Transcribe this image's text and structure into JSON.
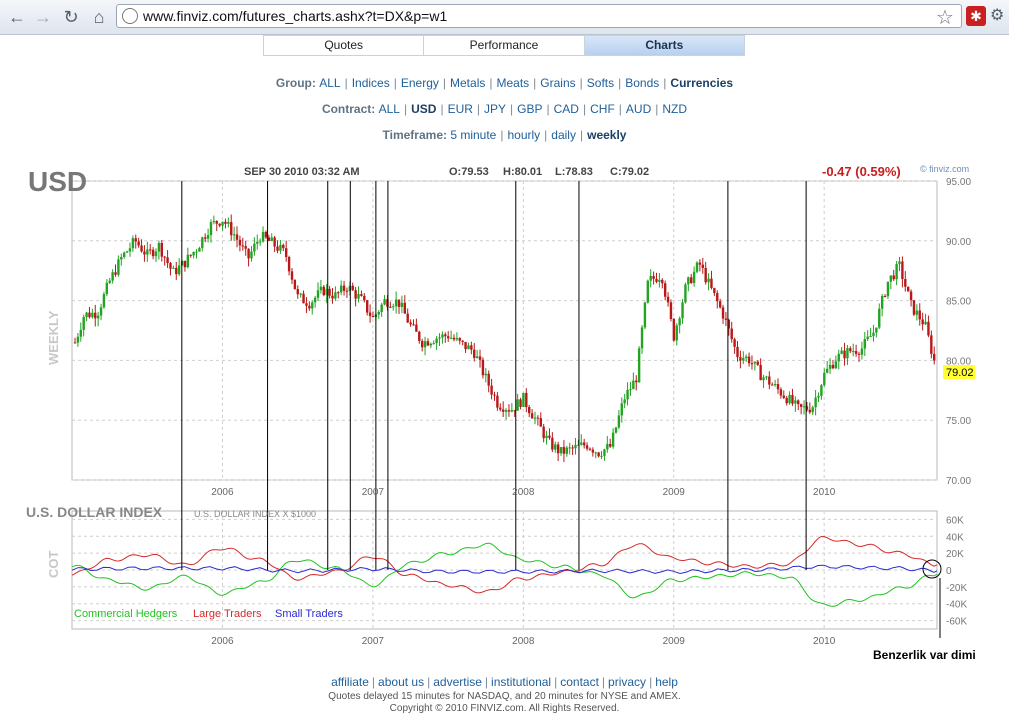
{
  "browser": {
    "url": "www.finviz.com/futures_charts.ashx?t=DX&p=w1"
  },
  "tabs": [
    {
      "label": "Quotes",
      "active": false
    },
    {
      "label": "Performance",
      "active": false
    },
    {
      "label": "Charts",
      "active": true
    }
  ],
  "filters": {
    "group": {
      "label": "Group:",
      "options": [
        "ALL",
        "Indices",
        "Energy",
        "Metals",
        "Meats",
        "Grains",
        "Softs",
        "Bonds",
        "Currencies"
      ],
      "selected": "Currencies"
    },
    "contract": {
      "label": "Contract:",
      "options": [
        "ALL",
        "USD",
        "EUR",
        "JPY",
        "GBP",
        "CAD",
        "CHF",
        "AUD",
        "NZD"
      ],
      "selected": "USD"
    },
    "timeframe": {
      "label": "Timeframe:",
      "options": [
        "5 minute",
        "hourly",
        "daily",
        "weekly"
      ],
      "selected": "weekly"
    }
  },
  "chart_data": [
    {
      "type": "candlestick",
      "symbol": "USD",
      "date_label": "SEP 30 2010 03:32 AM",
      "ohlc_label": {
        "open": "O:79.53",
        "high": "H:80.01",
        "low": "L:78.83",
        "close": "C:79.02"
      },
      "change": "-0.47 (0.59%)",
      "watermark": "© finviz.com",
      "period_label": "WEEKLY",
      "last_price": "79.02",
      "ylim": [
        70,
        95
      ],
      "yticks": [
        "95.00",
        "90.00",
        "85.00",
        "80.00",
        "75.00",
        "70.00"
      ],
      "xticks": [
        "2006",
        "2007",
        "2008",
        "2009",
        "2010"
      ],
      "x_range": [
        2005.0,
        2010.75
      ],
      "price_path": [
        [
          2005.02,
          81.5
        ],
        [
          2005.08,
          83.8
        ],
        [
          2005.17,
          84.0
        ],
        [
          2005.25,
          86.6
        ],
        [
          2005.33,
          88.6
        ],
        [
          2005.42,
          90.0
        ],
        [
          2005.5,
          88.8
        ],
        [
          2005.58,
          89.6
        ],
        [
          2005.67,
          87.3
        ],
        [
          2005.75,
          88.2
        ],
        [
          2005.83,
          89.4
        ],
        [
          2005.92,
          91.3
        ],
        [
          2006.0,
          91.8
        ],
        [
          2006.08,
          90.5
        ],
        [
          2006.17,
          88.5
        ],
        [
          2006.25,
          90.4
        ],
        [
          2006.33,
          89.8
        ],
        [
          2006.42,
          88.9
        ],
        [
          2006.5,
          85.3
        ],
        [
          2006.58,
          84.8
        ],
        [
          2006.67,
          85.9
        ],
        [
          2006.75,
          85.4
        ],
        [
          2006.83,
          86.2
        ],
        [
          2006.92,
          85.1
        ],
        [
          2007.0,
          83.5
        ],
        [
          2007.08,
          85.0
        ],
        [
          2007.17,
          84.9
        ],
        [
          2007.25,
          82.9
        ],
        [
          2007.33,
          81.5
        ],
        [
          2007.42,
          81.9
        ],
        [
          2007.5,
          82.1
        ],
        [
          2007.58,
          81.4
        ],
        [
          2007.67,
          80.8
        ],
        [
          2007.75,
          78.5
        ],
        [
          2007.83,
          76.4
        ],
        [
          2007.92,
          75.9
        ],
        [
          2008.0,
          76.8
        ],
        [
          2008.08,
          75.1
        ],
        [
          2008.17,
          73.1
        ],
        [
          2008.25,
          72.3
        ],
        [
          2008.33,
          72.6
        ],
        [
          2008.42,
          73.0
        ],
        [
          2008.5,
          72.3
        ],
        [
          2008.58,
          72.8
        ],
        [
          2008.67,
          76.8
        ],
        [
          2008.75,
          78.5
        ],
        [
          2008.83,
          86.6
        ],
        [
          2008.92,
          87.2
        ],
        [
          2009.0,
          82.0
        ],
        [
          2009.08,
          86.1
        ],
        [
          2009.17,
          88.1
        ],
        [
          2009.25,
          85.9
        ],
        [
          2009.33,
          83.8
        ],
        [
          2009.42,
          80.5
        ],
        [
          2009.5,
          80.1
        ],
        [
          2009.58,
          78.8
        ],
        [
          2009.67,
          77.8
        ],
        [
          2009.75,
          76.9
        ],
        [
          2009.83,
          75.9
        ],
        [
          2009.92,
          76.1
        ],
        [
          2010.0,
          78.8
        ],
        [
          2010.08,
          80.2
        ],
        [
          2010.17,
          80.8
        ],
        [
          2010.25,
          81.0
        ],
        [
          2010.33,
          82.4
        ],
        [
          2010.42,
          86.5
        ],
        [
          2010.5,
          87.9
        ],
        [
          2010.58,
          84.5
        ],
        [
          2010.67,
          83.0
        ],
        [
          2010.75,
          79.02
        ]
      ]
    },
    {
      "type": "line",
      "title": "U.S. DOLLAR INDEX",
      "subtitle": "U.S. DOLLAR INDEX X $1000",
      "panel_label": "COT",
      "ylim": [
        -70,
        70
      ],
      "yticks": [
        "60K",
        "40K",
        "20K",
        "0",
        "-20K",
        "-40K",
        "-60K"
      ],
      "xticks": [
        "2006",
        "2007",
        "2008",
        "2009",
        "2010"
      ],
      "series": [
        {
          "name": "Commercial Hedgers",
          "color": "#21c321",
          "points": [
            [
              2005.0,
              5
            ],
            [
              2005.25,
              -12
            ],
            [
              2005.5,
              -22
            ],
            [
              2005.75,
              -8
            ],
            [
              2006.0,
              -28
            ],
            [
              2006.25,
              -15
            ],
            [
              2006.5,
              12
            ],
            [
              2006.75,
              2
            ],
            [
              2007.0,
              -18
            ],
            [
              2007.25,
              8
            ],
            [
              2007.5,
              20
            ],
            [
              2007.75,
              30
            ],
            [
              2008.0,
              12
            ],
            [
              2008.25,
              4
            ],
            [
              2008.5,
              -5
            ],
            [
              2008.75,
              -32
            ],
            [
              2009.0,
              -12
            ],
            [
              2009.25,
              -8
            ],
            [
              2009.5,
              -4
            ],
            [
              2009.75,
              -8
            ],
            [
              2010.0,
              -42
            ],
            [
              2010.25,
              -35
            ],
            [
              2010.5,
              -22
            ],
            [
              2010.75,
              -5
            ]
          ]
        },
        {
          "name": "Large Traders",
          "color": "#d42a2a",
          "points": [
            [
              2005.0,
              -5
            ],
            [
              2005.25,
              12
            ],
            [
              2005.5,
              18
            ],
            [
              2005.75,
              6
            ],
            [
              2006.0,
              26
            ],
            [
              2006.25,
              12
            ],
            [
              2006.5,
              -10
            ],
            [
              2006.75,
              -2
            ],
            [
              2007.0,
              16
            ],
            [
              2007.25,
              -7
            ],
            [
              2007.5,
              -18
            ],
            [
              2007.75,
              -26
            ],
            [
              2008.0,
              -10
            ],
            [
              2008.25,
              -3
            ],
            [
              2008.5,
              6
            ],
            [
              2008.75,
              30
            ],
            [
              2009.0,
              14
            ],
            [
              2009.25,
              8
            ],
            [
              2009.5,
              4
            ],
            [
              2009.75,
              7
            ],
            [
              2010.0,
              38
            ],
            [
              2010.25,
              30
            ],
            [
              2010.5,
              20
            ],
            [
              2010.75,
              6
            ]
          ]
        },
        {
          "name": "Small Traders",
          "color": "#2b2bd0",
          "points": [
            [
              2005.0,
              1
            ],
            [
              2005.5,
              2
            ],
            [
              2006.0,
              2
            ],
            [
              2006.5,
              -1
            ],
            [
              2007.0,
              1
            ],
            [
              2007.5,
              -2
            ],
            [
              2008.0,
              -2
            ],
            [
              2008.5,
              -1
            ],
            [
              2009.0,
              -2
            ],
            [
              2009.5,
              0
            ],
            [
              2010.0,
              4
            ],
            [
              2010.5,
              2
            ],
            [
              2010.75,
              -1
            ]
          ]
        }
      ]
    }
  ],
  "annotations": {
    "note_text": "Benzerlik var dimi",
    "vertical_markers": [
      2005.73,
      2006.3,
      2006.7,
      2006.85,
      2007.02,
      2007.1,
      2007.95,
      2008.37,
      2009.36,
      2009.88
    ]
  },
  "footer": {
    "links": [
      "affiliate",
      "about us",
      "advertise",
      "institutional",
      "contact",
      "privacy",
      "help"
    ],
    "note": "Quotes delayed 15 minutes for NASDAQ, and 20 minutes for NYSE and AMEX.",
    "copyright": "Copyright © 2010 FINVIZ.com. All Rights Reserved."
  },
  "colors": {
    "up": "#22a322",
    "down": "#b81818",
    "link": "#1f5f9a",
    "grid": "#c8c8c8"
  }
}
